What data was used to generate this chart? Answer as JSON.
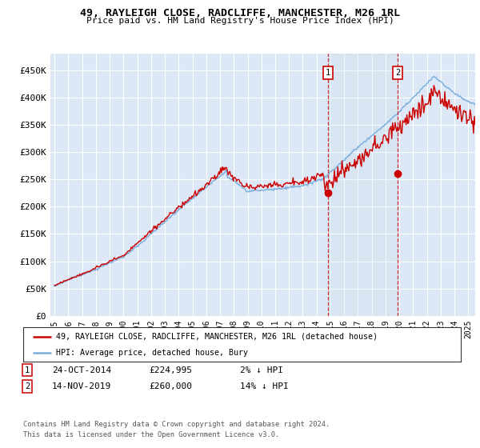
{
  "title": "49, RAYLEIGH CLOSE, RADCLIFFE, MANCHESTER, M26 1RL",
  "subtitle": "Price paid vs. HM Land Registry's House Price Index (HPI)",
  "ylabel_ticks": [
    "£0",
    "£50K",
    "£100K",
    "£150K",
    "£200K",
    "£250K",
    "£300K",
    "£350K",
    "£400K",
    "£450K"
  ],
  "ytick_values": [
    0,
    50000,
    100000,
    150000,
    200000,
    250000,
    300000,
    350000,
    400000,
    450000
  ],
  "ylim": [
    0,
    480000
  ],
  "hpi_color": "#7aaddc",
  "price_color": "#cc0000",
  "plot_bg_color": "#dce8f5",
  "grid_color": "#ffffff",
  "marker1_x": 2014.82,
  "marker1_y": 224995,
  "marker2_x": 2019.87,
  "marker2_y": 260000,
  "annotation1_date": "24-OCT-2014",
  "annotation1_price": "£224,995",
  "annotation1_hpi": "2% ↓ HPI",
  "annotation2_date": "14-NOV-2019",
  "annotation2_price": "£260,000",
  "annotation2_hpi": "14% ↓ HPI",
  "legend_line1": "49, RAYLEIGH CLOSE, RADCLIFFE, MANCHESTER, M26 1RL (detached house)",
  "legend_line2": "HPI: Average price, detached house, Bury",
  "footnote": "Contains HM Land Registry data © Crown copyright and database right 2024.\nThis data is licensed under the Open Government Licence v3.0.",
  "xtick_years": [
    1995,
    1996,
    1997,
    1998,
    1999,
    2000,
    2001,
    2002,
    2003,
    2004,
    2005,
    2006,
    2007,
    2008,
    2009,
    2010,
    2011,
    2012,
    2013,
    2014,
    2015,
    2016,
    2017,
    2018,
    2019,
    2020,
    2021,
    2022,
    2023,
    2024,
    2025
  ]
}
